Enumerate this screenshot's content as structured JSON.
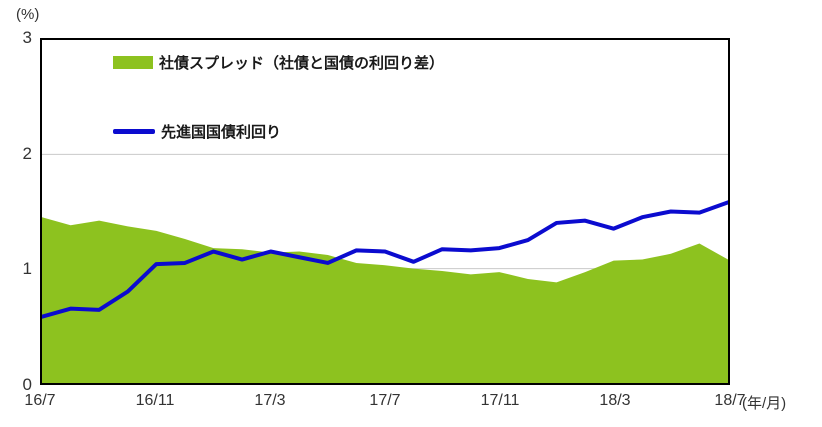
{
  "axes": {
    "y_unit": "(%)",
    "x_unit": "(年/月)",
    "y_ticks": [
      0,
      1,
      2,
      3
    ],
    "y_min": 0,
    "y_max": 3
  },
  "legend": {
    "spread": "社債スプレッド（社債と国債の利回り差）",
    "yield": "先進国国債利回り"
  },
  "colors": {
    "spread": "#8DC21F",
    "yield": "#0B0BCF",
    "grid": "#C9C9C9",
    "border": "#000000",
    "text": "#333333"
  },
  "chart_data": {
    "type": "area+line",
    "title": "",
    "xlabel": "(年/月)",
    "ylabel": "(%)",
    "ylim": [
      0,
      3
    ],
    "gridlines_y": [
      1,
      2
    ],
    "x": [
      "16/7",
      "16/8",
      "16/9",
      "16/10",
      "16/11",
      "16/12",
      "17/1",
      "17/2",
      "17/3",
      "17/4",
      "17/5",
      "17/6",
      "17/7",
      "17/8",
      "17/9",
      "17/10",
      "17/11",
      "17/12",
      "18/1",
      "18/2",
      "18/3",
      "18/4",
      "18/5",
      "18/6",
      "18/7"
    ],
    "x_tick_labels": [
      "16/7",
      "16/11",
      "17/3",
      "17/7",
      "17/11",
      "18/3",
      "18/7"
    ],
    "x_tick_indices": [
      0,
      4,
      8,
      12,
      16,
      20,
      24
    ],
    "series": [
      {
        "name": "社債スプレッド（社債と国債の利回り差）",
        "type": "area",
        "color": "#8DC21F",
        "values": [
          1.45,
          1.38,
          1.42,
          1.37,
          1.33,
          1.26,
          1.18,
          1.17,
          1.14,
          1.15,
          1.12,
          1.05,
          1.03,
          1.0,
          0.98,
          0.95,
          0.97,
          0.91,
          0.88,
          0.97,
          1.07,
          1.08,
          1.13,
          1.22,
          1.08
        ]
      },
      {
        "name": "先進国国債利回り",
        "type": "line",
        "color": "#0B0BCF",
        "values": [
          0.58,
          0.65,
          0.64,
          0.8,
          1.04,
          1.05,
          1.15,
          1.08,
          1.15,
          1.1,
          1.05,
          1.16,
          1.15,
          1.06,
          1.17,
          1.16,
          1.18,
          1.25,
          1.4,
          1.42,
          1.35,
          1.45,
          1.5,
          1.49,
          1.58
        ]
      }
    ]
  }
}
